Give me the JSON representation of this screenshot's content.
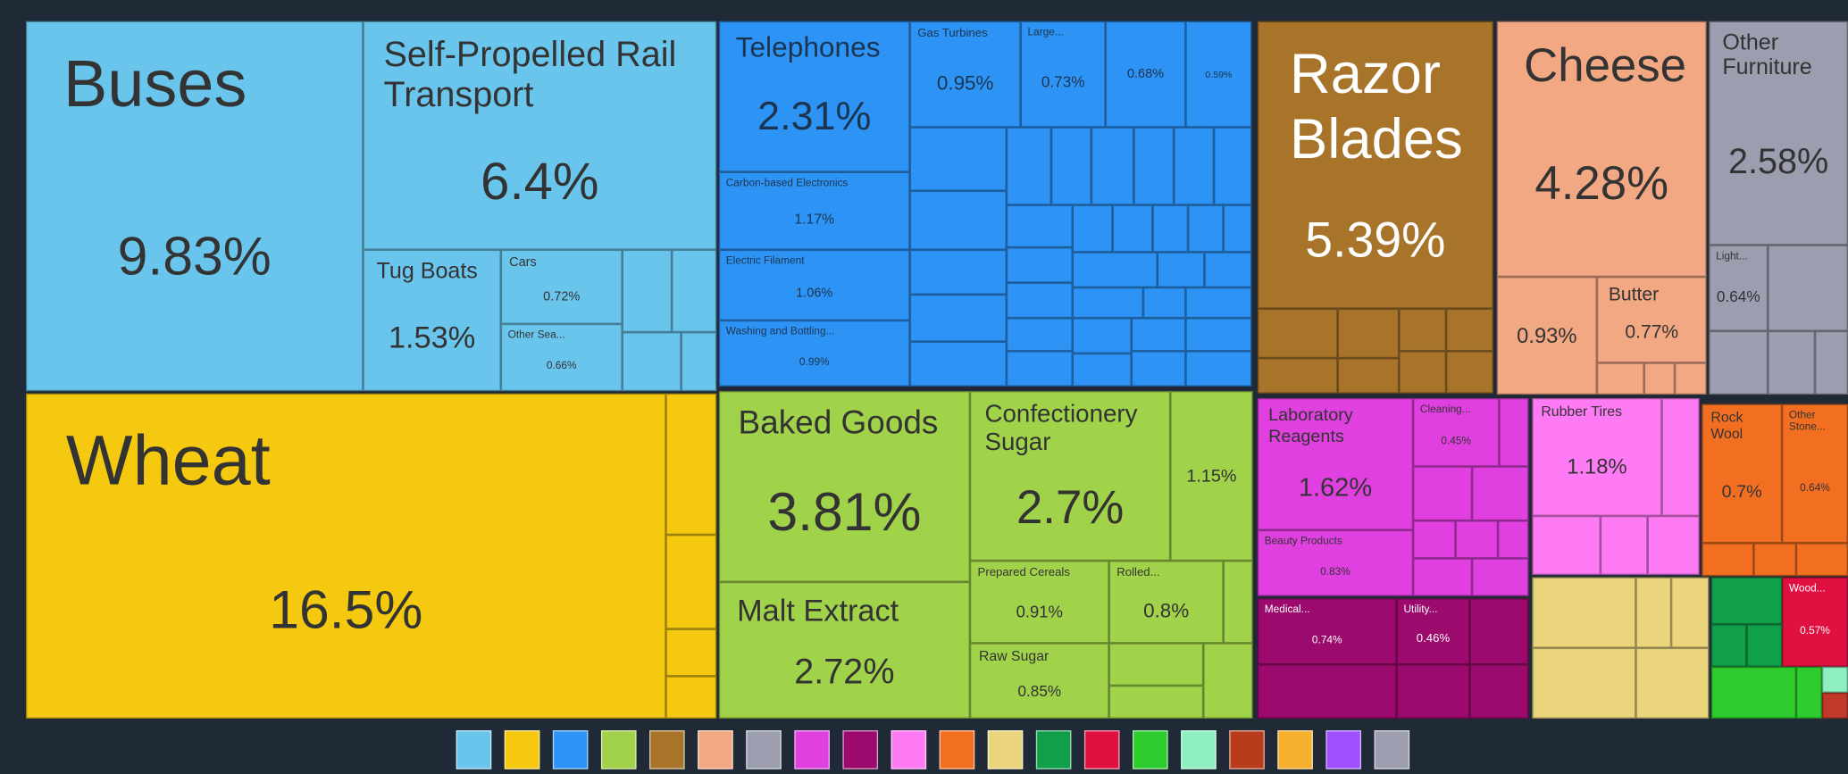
{
  "chart_data": {
    "type": "treemap",
    "categories": [
      "Buses",
      "Self-Propelled Rail Transport",
      "Tug Boats",
      "Cars",
      "Other Sea...",
      "Wheat",
      "Telephones",
      "Carbon-based Electronics",
      "Electric Filament",
      "Washing and Bottling...",
      "Gas Turbines",
      "Large...",
      null,
      null,
      "Razor Blades",
      "Cheese",
      null,
      "Butter",
      "Other Furniture",
      "Light...",
      "Baked Goods",
      "Malt Extract",
      "Confectionery Sugar",
      null,
      "Prepared Cereals",
      "Rolled...",
      "Raw Sugar",
      "Laboratory Reagents",
      "Beauty Products",
      "Cleaning...",
      "Medical...",
      "Utility...",
      "Rubber Tires",
      "Rock Wool",
      "Other Stone...",
      "Wood..."
    ],
    "values": [
      9.83,
      6.4,
      1.53,
      0.72,
      0.66,
      16.5,
      2.31,
      1.17,
      1.06,
      0.99,
      0.95,
      0.73,
      0.68,
      0.59,
      5.39,
      4.28,
      0.93,
      0.77,
      2.58,
      0.64,
      3.81,
      2.72,
      2.7,
      1.15,
      0.91,
      0.8,
      0.85,
      1.62,
      0.83,
      0.45,
      0.74,
      0.46,
      1.18,
      0.7,
      0.64,
      0.57
    ],
    "value_labels": [
      "9.83%",
      "6.4%",
      "1.53%",
      "0.72%",
      "0.66%",
      "16.5%",
      "2.31%",
      "1.17%",
      "1.06%",
      "0.99%",
      "0.95%",
      "0.73%",
      "0.68%",
      "0.59%",
      "5.39%",
      "4.28%",
      "0.93%",
      "0.77%",
      "2.58%",
      "0.64%",
      "3.81%",
      "2.72%",
      "2.7%",
      "1.15%",
      "0.91%",
      "0.8%",
      "0.85%",
      "1.62%",
      "0.83%",
      "0.45%",
      "0.74%",
      "0.46%",
      "1.18%",
      "0.7%",
      "0.64%",
      "0.57%"
    ],
    "colors": [
      "#6ac5ec",
      "#6ac5ec",
      "#6ac5ec",
      "#6ac5ec",
      "#6ac5ec",
      "#f5c90f",
      "#2d93f5",
      "#2d93f5",
      "#2d93f5",
      "#2d93f5",
      "#2d93f5",
      "#2d93f5",
      "#2d93f5",
      "#2d93f5",
      "#a8742a",
      "#f2a883",
      "#f2a883",
      "#f2a883",
      "#9c9eb0",
      "#9c9eb0",
      "#a0d24a",
      "#a0d24a",
      "#a0d24a",
      "#a0d24a",
      "#a0d24a",
      "#a0d24a",
      "#a0d24a",
      "#e040e0",
      "#e040e0",
      "#e040e0",
      "#9c0a6e",
      "#9c0a6e",
      "#ff7bf5",
      "#f26f22",
      "#f26f22",
      "#e01040"
    ]
  }
}
